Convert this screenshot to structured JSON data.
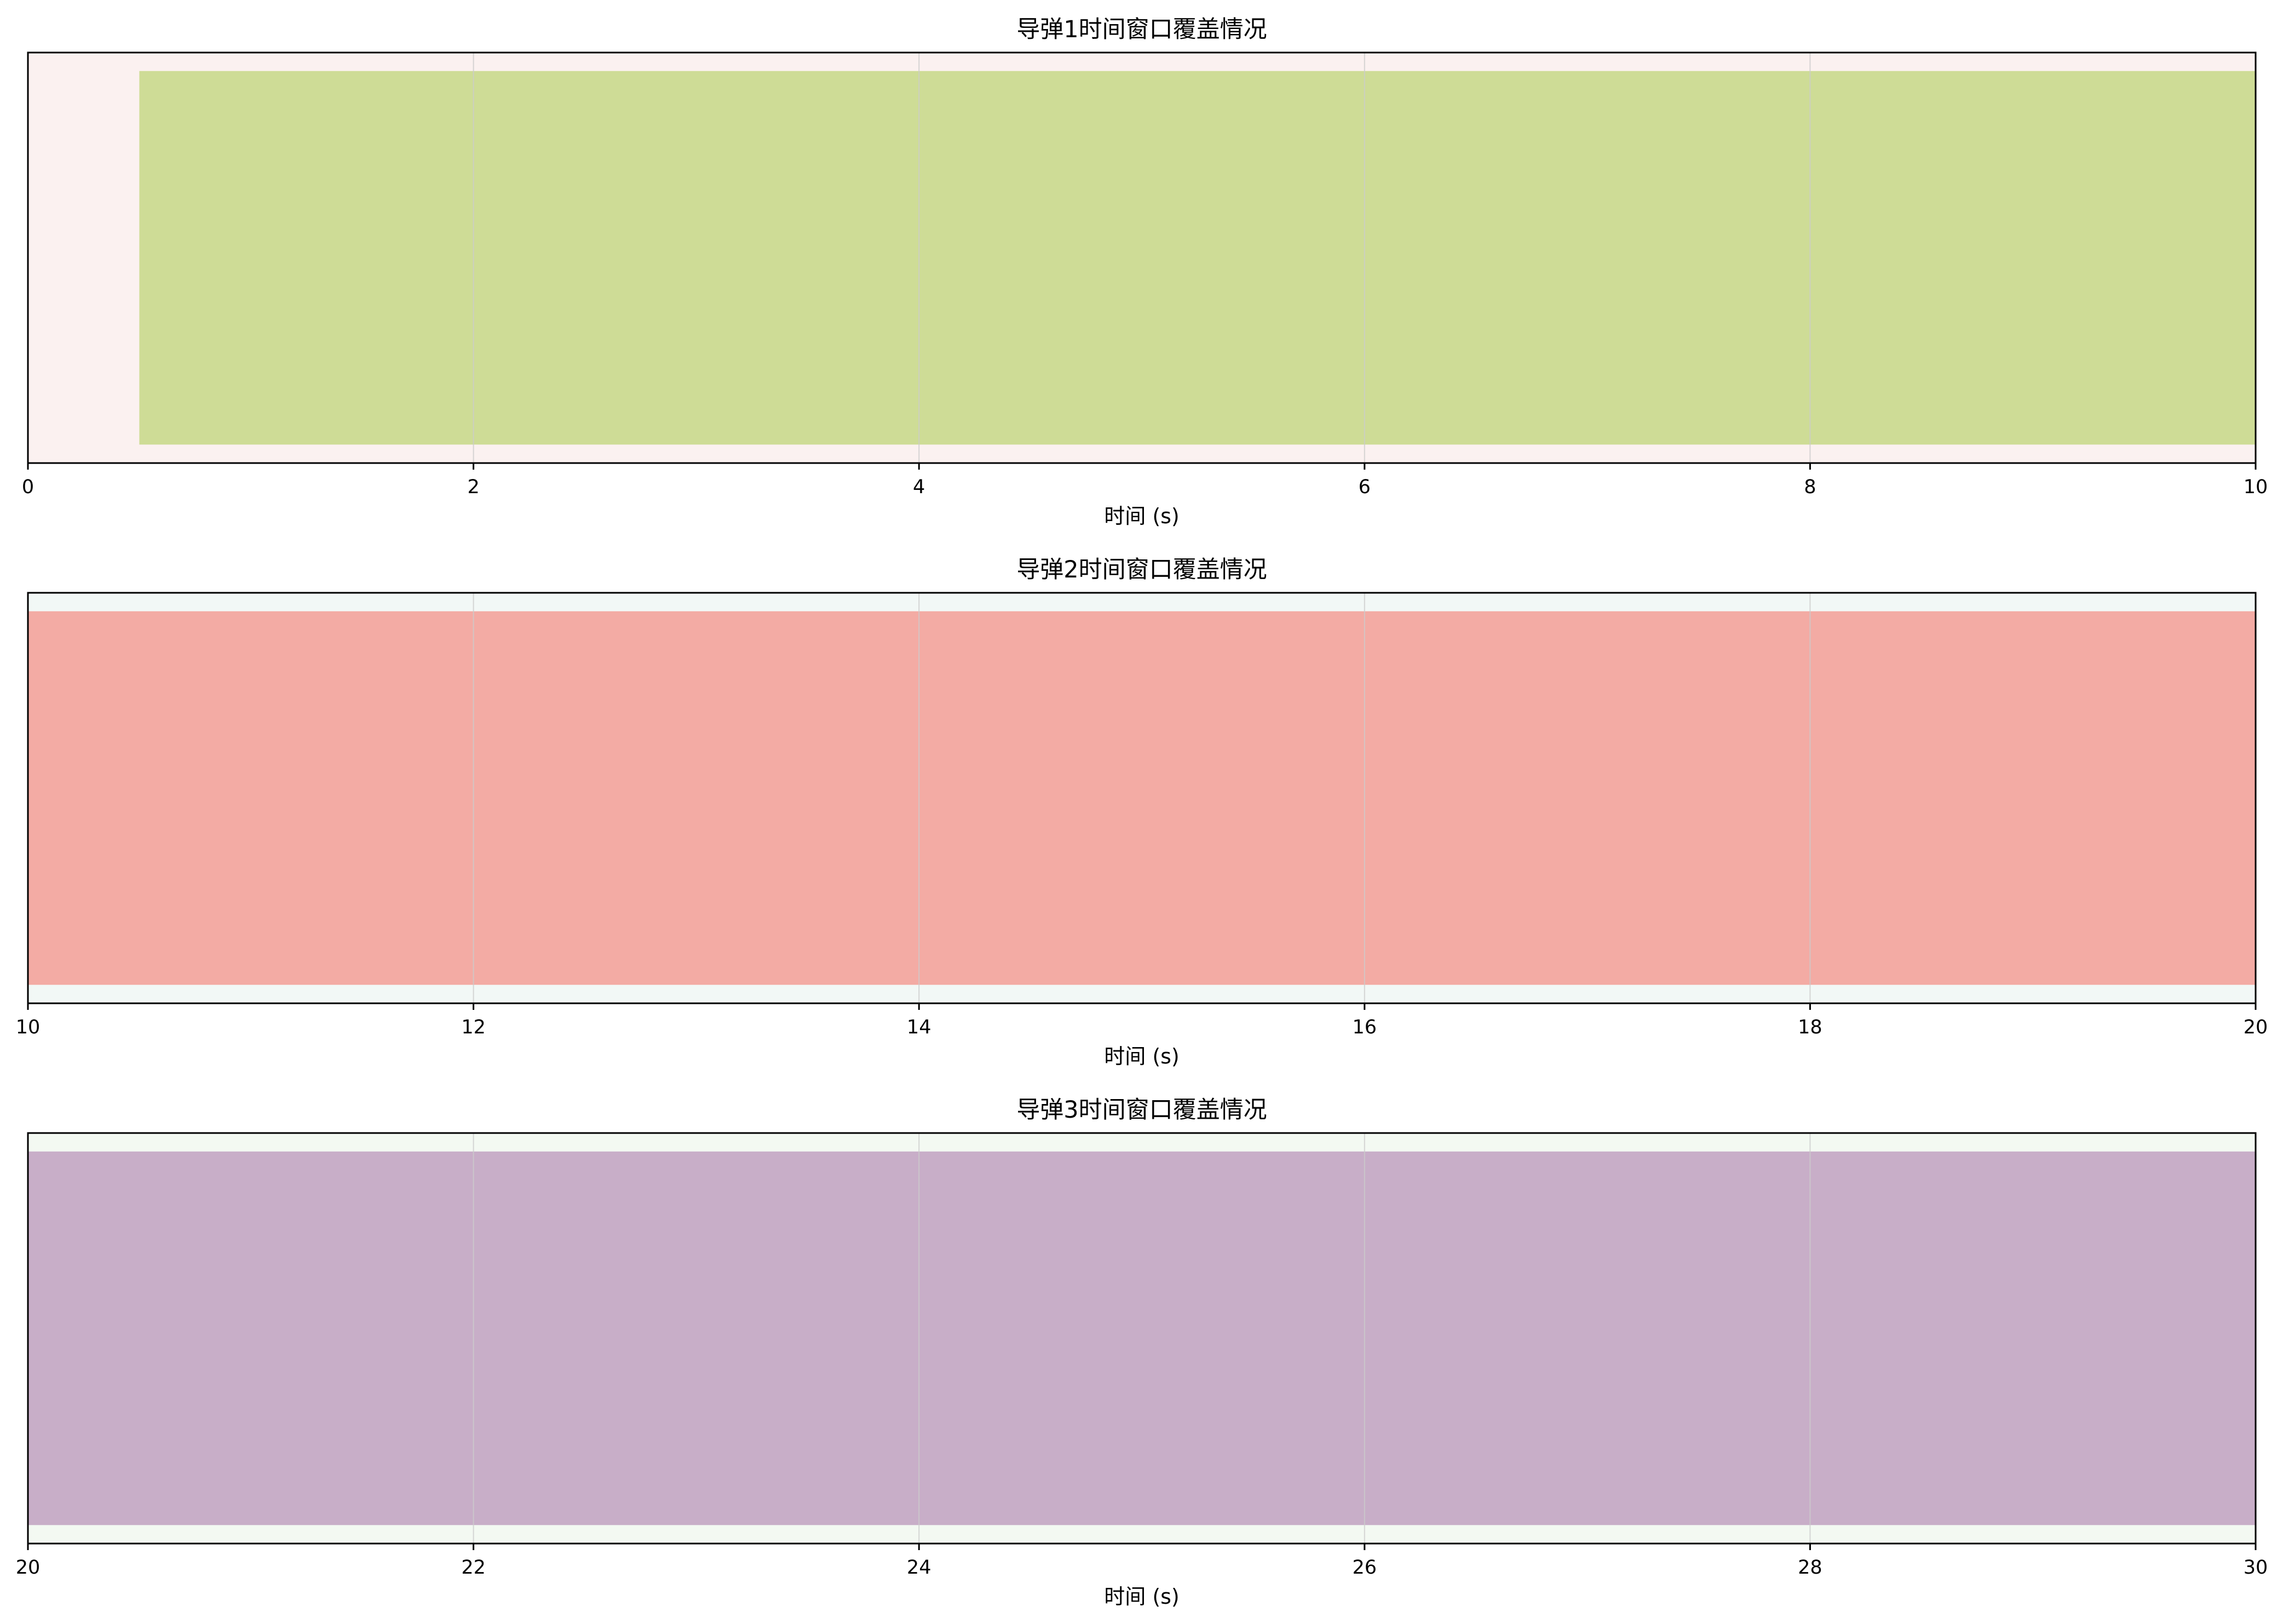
{
  "chart_data": [
    {
      "type": "bar",
      "orientation": "horizontal",
      "title": "导弹1时间窗口覆盖情况",
      "xlabel": "时间 (s)",
      "xlim": [
        0,
        10
      ],
      "xticks": [
        "0",
        "2",
        "4",
        "6",
        "8",
        "10"
      ],
      "grid": true,
      "background_color": "#fbf1f0",
      "bar_color": "#cedc96",
      "intervals": [
        {
          "start": 0.5,
          "end": 10
        }
      ]
    },
    {
      "type": "bar",
      "orientation": "horizontal",
      "title": "导弹2时间窗口覆盖情况",
      "xlabel": "时间 (s)",
      "xlim": [
        10,
        20
      ],
      "xticks": [
        "10",
        "12",
        "14",
        "16",
        "18",
        "20"
      ],
      "grid": true,
      "background_color": "#f2f8f6",
      "bar_color": "#f3aba4",
      "intervals": [
        {
          "start": 10,
          "end": 20
        }
      ]
    },
    {
      "type": "bar",
      "orientation": "horizontal",
      "title": "导弹3时间窗口覆盖情况",
      "xlabel": "时间 (s)",
      "xlim": [
        20,
        30
      ],
      "xticks": [
        "20",
        "22",
        "24",
        "26",
        "28",
        "30"
      ],
      "grid": true,
      "background_color": "#f3f9f2",
      "bar_color": "#c8aec8",
      "intervals": [
        {
          "start": 20,
          "end": 30
        }
      ]
    }
  ]
}
